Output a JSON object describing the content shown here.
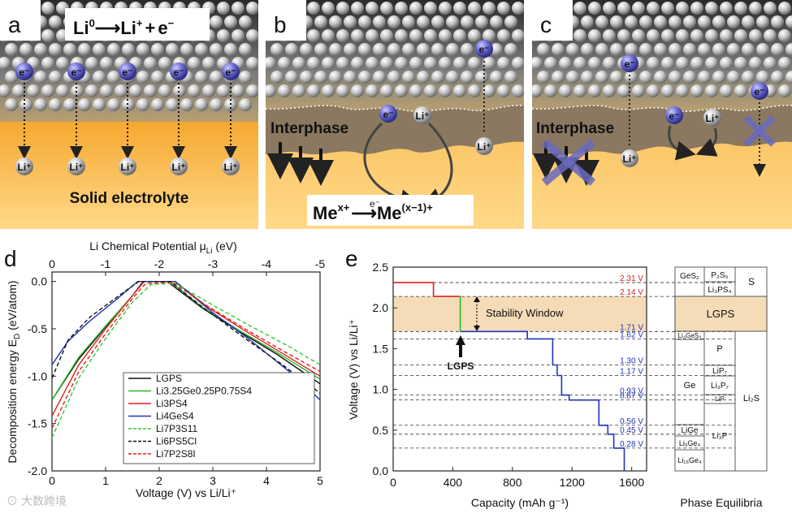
{
  "panels": {
    "a": {
      "letter": "a",
      "reaction": {
        "lhs": "Li",
        "lhs_sup": "0",
        "arrow": "⟶",
        "rhs": "Li",
        "rhs_sup": "+",
        "plus": "+",
        "e": "e",
        "e_sup": "−"
      },
      "electron": "e⁻",
      "ion": "Li⁺",
      "electrolyte_label": "Solid electrolyte"
    },
    "b": {
      "letter": "b",
      "interphase_label": "Interphase",
      "electron": "e⁻",
      "ion": "Li⁺",
      "redox": {
        "me1": "Me",
        "me1_sup": "x+",
        "arrow_e": "e⁻",
        "me2": "Me",
        "me2_sup": "(x−1)+"
      }
    },
    "c": {
      "letter": "c",
      "interphase_label": "Interphase",
      "electron": "e⁻",
      "ion": "Li⁺"
    },
    "d": {
      "letter": "d",
      "top_axis_label": "Li Chemical Potential μ",
      "top_axis_sub": "Li",
      "top_axis_unit": " (eV)",
      "top_ticks": [
        "0",
        "-1",
        "-2",
        "-3",
        "-4",
        "-5"
      ],
      "xlabel": "Voltage (V) vs Li/Li⁺",
      "ylabel": "Decomposition energy E",
      "ylabel_sub": "D",
      "ylabel_unit": " (eV/atom)",
      "x_ticks": [
        "0",
        "1",
        "2",
        "3",
        "4",
        "5"
      ],
      "y_ticks": [
        "0.0",
        "-0.5",
        "-1.0",
        "-1.5",
        "-2.0"
      ]
    },
    "e": {
      "letter": "e",
      "xlabel": "Capacity (mAh g⁻¹)",
      "ylabel": "Voltage (V) vs Li/Li⁺",
      "x_ticks": [
        "0",
        "400",
        "800",
        "1200",
        "1600"
      ],
      "y_ticks": [
        "0.0",
        "0.5",
        "1.0",
        "1.5",
        "2.0",
        "2.5"
      ],
      "stability_window": "Stability Window",
      "lgps_marker": "LGPS",
      "phase_equilibria_label": "Phase Equilibria",
      "voltage_labels": [
        "2.31 V",
        "2.14 V",
        "1.71 V",
        "1.62 V",
        "1.30 V",
        "1.17 V",
        "0.93 V",
        "0.87 V",
        "0.56 V",
        "0.45 V",
        "0.28 V"
      ],
      "phases": {
        "ges2": "GeS₂",
        "p2s5": "P₂S₅",
        "s": "S",
        "li3ps4": "Li₃PS₄",
        "lgps": "LGPS",
        "li4ges4": "Li₄GeS₄",
        "p": "P",
        "lip7": "LiP₇",
        "ge": "Ge",
        "li3p7": "Li₃P₇",
        "lip": "LiP",
        "li2s": "Li₂S",
        "lige": "LiGe",
        "li9ge4": "Li₉Ge₄",
        "li3p": "Li₃P",
        "li15ge4": "Li₁₅Ge₄"
      }
    }
  },
  "watermark": "大数跨境",
  "colors": {
    "lgps": "#111111",
    "lgeps": "#22bb22",
    "li3ps4": "#e02020",
    "li4ges4": "#2233bb",
    "li7p3s11": "#33cc33",
    "li6ps5cl": "#111111",
    "li7p2s8i": "#e02020",
    "stability_band": "#f5dcb8",
    "electrolyte": "#f6b24a"
  },
  "chart_data": [
    {
      "type": "line",
      "panel": "d",
      "xlabel": "Voltage (V) vs Li/Li+",
      "ylabel": "Decomposition energy ED (eV/atom)",
      "xlim": [
        0,
        5
      ],
      "ylim": [
        -2.0,
        0.1
      ],
      "top_axis": {
        "label": "Li Chemical Potential μLi (eV)",
        "range": [
          0,
          -5
        ]
      },
      "legend": "bottom-right",
      "series": [
        {
          "name": "LGPS",
          "color": "#111111",
          "dash": "solid",
          "x": [
            0,
            0.5,
            1.0,
            1.5,
            1.7,
            2.15,
            2.8,
            3.5,
            4.2,
            5.0
          ],
          "y": [
            -1.25,
            -0.82,
            -0.48,
            -0.15,
            0.0,
            0.0,
            -0.28,
            -0.53,
            -0.77,
            -1.08
          ]
        },
        {
          "name": "Li3.25Ge0.25P0.75S4",
          "color": "#22bb22",
          "dash": "solid",
          "x": [
            0,
            0.5,
            1.0,
            1.5,
            1.72,
            2.2,
            2.8,
            3.5,
            4.2,
            5.0
          ],
          "y": [
            -1.25,
            -0.8,
            -0.47,
            -0.15,
            0.0,
            0.0,
            -0.27,
            -0.52,
            -0.75,
            -1.03
          ]
        },
        {
          "name": "Li3PS4",
          "color": "#e02020",
          "dash": "solid",
          "x": [
            0,
            0.5,
            1.0,
            1.5,
            1.72,
            2.3,
            2.9,
            3.6,
            4.3,
            5.0
          ],
          "y": [
            -1.42,
            -0.88,
            -0.5,
            -0.15,
            0.0,
            0.0,
            -0.27,
            -0.52,
            -0.76,
            -1.0
          ]
        },
        {
          "name": "Li4GeS4",
          "color": "#2233bb",
          "dash": "solid",
          "x": [
            0,
            0.3,
            0.7,
            1.2,
            1.6,
            2.3,
            3.0,
            3.7,
            4.4,
            5.0
          ],
          "y": [
            -0.88,
            -0.63,
            -0.42,
            -0.19,
            0.0,
            0.0,
            -0.33,
            -0.62,
            -0.94,
            -1.25
          ]
        },
        {
          "name": "Li7P3S11",
          "color": "#33cc33",
          "dash": "dashed",
          "x": [
            0,
            0.5,
            1.0,
            1.5,
            1.85,
            2.3,
            3.0,
            3.7,
            4.4,
            5.0
          ],
          "y": [
            -1.65,
            -1.02,
            -0.6,
            -0.22,
            -0.03,
            -0.02,
            -0.25,
            -0.47,
            -0.68,
            -0.88
          ]
        },
        {
          "name": "Li6PS5Cl",
          "color": "#111111",
          "dash": "dashed",
          "x": [
            0,
            0.3,
            0.7,
            1.2,
            1.62,
            2.2,
            2.9,
            3.6,
            4.3,
            5.0
          ],
          "y": [
            -1.02,
            -0.62,
            -0.38,
            -0.17,
            0.0,
            0.0,
            -0.31,
            -0.6,
            -0.88,
            -1.18
          ]
        },
        {
          "name": "Li7P2S8I",
          "color": "#e02020",
          "dash": "dashed",
          "x": [
            0,
            0.5,
            1.0,
            1.5,
            1.75,
            2.25,
            2.9,
            3.6,
            4.3,
            5.0
          ],
          "y": [
            -1.55,
            -0.95,
            -0.55,
            -0.18,
            -0.02,
            -0.01,
            -0.26,
            -0.5,
            -0.73,
            -0.95
          ]
        }
      ]
    },
    {
      "type": "line",
      "panel": "e",
      "xlabel": "Capacity (mAh g-1)",
      "ylabel": "Voltage (V) vs Li/Li+",
      "xlim": [
        0,
        1700
      ],
      "ylim": [
        0,
        2.5
      ],
      "stability_window": [
        1.71,
        2.14
      ],
      "lgps_capacity": 450,
      "series": [
        {
          "name": "red",
          "color": "#e02020",
          "x": [
            0,
            270,
            270,
            450
          ],
          "y": [
            2.31,
            2.31,
            2.14,
            2.14
          ]
        },
        {
          "name": "green",
          "color": "#22bb22",
          "x": [
            450,
            450
          ],
          "y": [
            2.14,
            1.71
          ]
        },
        {
          "name": "blue",
          "color": "#2233bb",
          "x": [
            450,
            900,
            900,
            1070,
            1070,
            1100,
            1100,
            1130,
            1130,
            1180,
            1180,
            1380,
            1380,
            1440,
            1440,
            1480,
            1480,
            1550,
            1550
          ],
          "y": [
            1.71,
            1.71,
            1.62,
            1.62,
            1.3,
            1.3,
            1.17,
            1.17,
            0.93,
            0.93,
            0.87,
            0.87,
            0.56,
            0.56,
            0.45,
            0.45,
            0.28,
            0.28,
            0.0
          ]
        }
      ]
    }
  ]
}
